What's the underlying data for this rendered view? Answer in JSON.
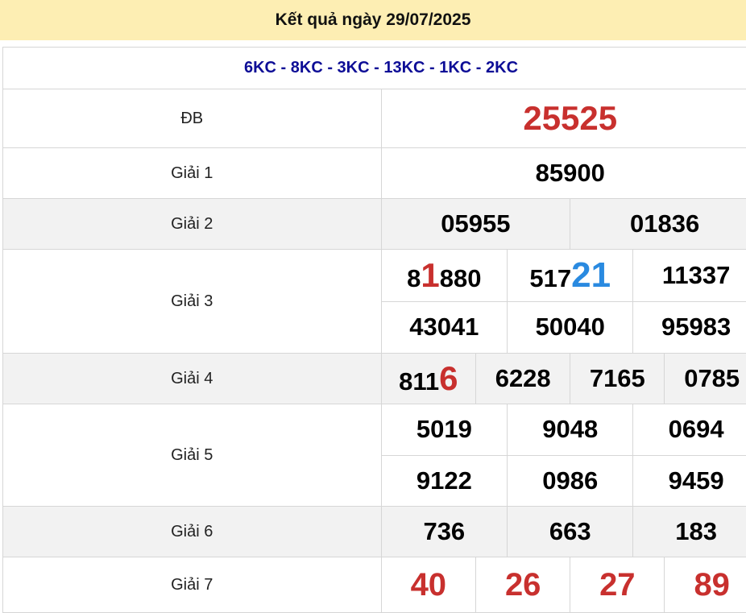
{
  "title": "Kết quả ngày 29/07/2025",
  "codes": "6KC - 8KC - 3KC - 13KC - 1KC - 2KC",
  "prizes": [
    {
      "label": "ĐB",
      "rows": [
        [
          [
            {
              "t": "25525"
            }
          ]
        ]
      ]
    },
    {
      "label": "Giải 1",
      "rows": [
        [
          [
            {
              "t": "85900"
            }
          ]
        ]
      ]
    },
    {
      "label": "Giải 2",
      "rows": [
        [
          [
            {
              "t": "05955"
            }
          ],
          [
            {
              "t": "01836"
            }
          ]
        ]
      ]
    },
    {
      "label": "Giải 3",
      "rows": [
        [
          [
            {
              "t": "8"
            },
            {
              "t": "1",
              "c": "red"
            },
            {
              "t": "880"
            }
          ],
          [
            {
              "t": "517"
            },
            {
              "t": "21",
              "c": "blue"
            }
          ],
          [
            {
              "t": "11337"
            }
          ]
        ],
        [
          [
            {
              "t": "43041"
            }
          ],
          [
            {
              "t": "50040"
            }
          ],
          [
            {
              "t": "95983"
            }
          ]
        ]
      ]
    },
    {
      "label": "Giải 4",
      "rows": [
        [
          [
            {
              "t": "811"
            },
            {
              "t": "6",
              "c": "red"
            }
          ],
          [
            {
              "t": "6228"
            }
          ],
          [
            {
              "t": "7165"
            }
          ],
          [
            {
              "t": "0785"
            }
          ]
        ]
      ]
    },
    {
      "label": "Giải 5",
      "rows": [
        [
          [
            {
              "t": "5019"
            }
          ],
          [
            {
              "t": "9048"
            }
          ],
          [
            {
              "t": "0694"
            }
          ]
        ],
        [
          [
            {
              "t": "9122"
            }
          ],
          [
            {
              "t": "0986"
            }
          ],
          [
            {
              "t": "9459"
            }
          ]
        ]
      ]
    },
    {
      "label": "Giải 6",
      "rows": [
        [
          [
            {
              "t": "736"
            }
          ],
          [
            {
              "t": "663"
            }
          ],
          [
            {
              "t": "183"
            }
          ]
        ]
      ]
    },
    {
      "label": "Giải 7",
      "rows": [
        [
          [
            {
              "t": "40"
            }
          ],
          [
            {
              "t": "26"
            }
          ],
          [
            {
              "t": "27"
            }
          ],
          [
            {
              "t": "89"
            }
          ]
        ]
      ]
    }
  ],
  "colors": {
    "header_bg": "#fdeeb3",
    "codes": "#0d0d96",
    "highlight_red": "#c8302e",
    "highlight_blue": "#2a8ae0"
  }
}
